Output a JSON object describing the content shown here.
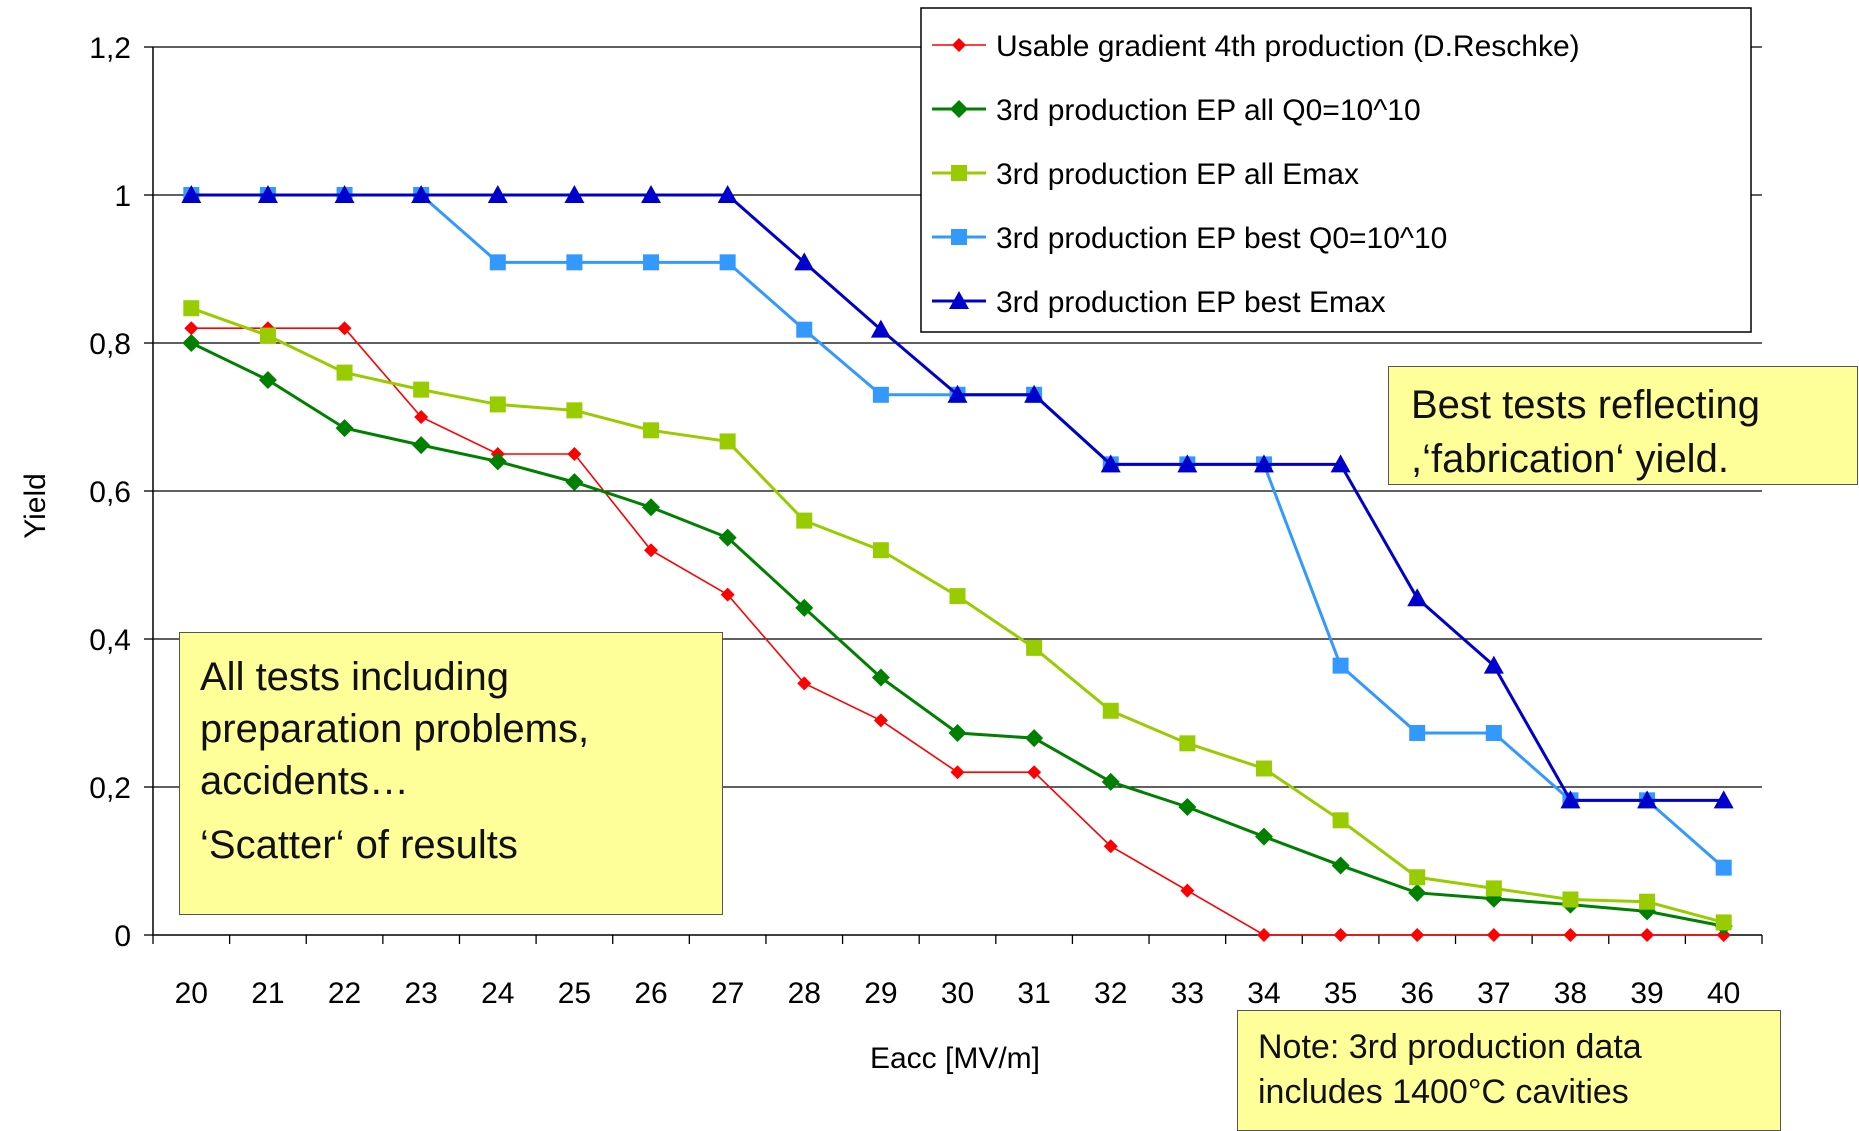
{
  "chart_data": {
    "type": "line",
    "xlabel": "Eacc [MV/m]",
    "ylabel": "Yield",
    "x": [
      20,
      21,
      22,
      23,
      24,
      25,
      26,
      27,
      28,
      29,
      30,
      31,
      32,
      33,
      34,
      35,
      36,
      37,
      38,
      39,
      40
    ],
    "ylim": [
      0,
      1.2
    ],
    "y_ticks": [
      0,
      0.2,
      0.4,
      0.6,
      0.8,
      1,
      1.2
    ],
    "y_tick_labels": [
      "0",
      "0,2",
      "0,4",
      "0,6",
      "0,8",
      "1",
      "1,2"
    ],
    "x_tick_labels": [
      "20",
      "21",
      "22",
      "23",
      "24",
      "25",
      "26",
      "27",
      "28",
      "29",
      "30",
      "31",
      "32",
      "33",
      "34",
      "35",
      "36",
      "37",
      "38",
      "39",
      "40"
    ],
    "grid": "horizontal",
    "legend_position": "top-right",
    "series": [
      {
        "name": "Usable gradient 4th production (D.Reschke)",
        "color": "#ff0000",
        "marker": "diamond-small",
        "values": [
          0.82,
          0.82,
          0.82,
          0.7,
          0.65,
          0.65,
          0.52,
          0.46,
          0.34,
          0.29,
          0.22,
          0.22,
          0.12,
          0.06,
          0.0,
          0.0,
          0.0,
          0.0,
          0.0,
          0.0,
          0.0
        ]
      },
      {
        "name": "3rd production EP all Q0=10^10",
        "color": "#008000",
        "marker": "diamond",
        "values": [
          0.8,
          0.75,
          0.685,
          0.662,
          0.64,
          0.612,
          0.578,
          0.537,
          0.442,
          0.348,
          0.273,
          0.266,
          0.207,
          0.173,
          0.133,
          0.094,
          0.057,
          0.049,
          0.041,
          0.032,
          0.012
        ]
      },
      {
        "name": "3rd production EP all Emax",
        "color": "#99cc00",
        "marker": "square",
        "values": [
          0.847,
          0.81,
          0.76,
          0.737,
          0.717,
          0.709,
          0.682,
          0.667,
          0.56,
          0.52,
          0.458,
          0.388,
          0.303,
          0.259,
          0.225,
          0.155,
          0.078,
          0.063,
          0.048,
          0.045,
          0.017
        ]
      },
      {
        "name": "3rd production EP best Q0=10^10",
        "color": "#3399ff",
        "marker": "square",
        "values": [
          1.0,
          1.0,
          1.0,
          1.0,
          0.909,
          0.909,
          0.909,
          0.909,
          0.818,
          0.73,
          0.73,
          0.73,
          0.636,
          0.636,
          0.636,
          0.364,
          0.273,
          0.273,
          0.182,
          0.182,
          0.091
        ]
      },
      {
        "name": "3rd production EP best Emax",
        "color": "#0000cc",
        "marker": "triangle",
        "values": [
          1.0,
          1.0,
          1.0,
          1.0,
          1.0,
          1.0,
          1.0,
          1.0,
          0.909,
          0.818,
          0.73,
          0.73,
          0.636,
          0.636,
          0.636,
          0.636,
          0.455,
          0.364,
          0.182,
          0.182,
          0.182
        ]
      }
    ]
  },
  "annotations": {
    "best_tests": {
      "line1": "Best tests reflecting",
      "line2": ",‘fabrication‘ yield."
    },
    "all_tests": {
      "line1": "All tests including",
      "line2": "preparation problems,",
      "line3": "accidents…",
      "line4": "‘Scatter‘ of results"
    },
    "production_note": {
      "line1": "Note: 3rd production data",
      "line2": "includes 1400°C cavities"
    }
  },
  "colors": {
    "note_background": "#ffff99",
    "gridline": "#000000"
  }
}
